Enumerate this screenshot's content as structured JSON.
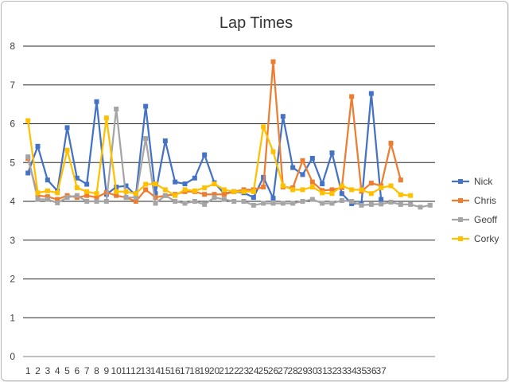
{
  "chart_data": {
    "type": "line",
    "title": "Lap Times",
    "xlabel": "",
    "ylabel": "",
    "ylim": [
      0,
      8
    ],
    "y_ticks": [
      0,
      1,
      2,
      3,
      4,
      5,
      6,
      7,
      8
    ],
    "grid": "horizontal",
    "legend_position": "right",
    "categories": [
      "1",
      "2",
      "3",
      "4",
      "5",
      "6",
      "7",
      "8",
      "9",
      "10",
      "11",
      "12",
      "13",
      "14",
      "15",
      "16",
      "17",
      "18",
      "19",
      "20",
      "21",
      "22",
      "23",
      "24",
      "25",
      "26",
      "27",
      "28",
      "29",
      "30",
      "31",
      "32",
      "33",
      "34",
      "35",
      "36",
      "37",
      "",
      "",
      "",
      "",
      ""
    ],
    "series": [
      {
        "name": "Nick",
        "color": "#4472c4",
        "values": [
          4.73,
          5.42,
          4.55,
          4.27,
          5.9,
          4.6,
          4.44,
          6.57,
          4.18,
          4.37,
          4.4,
          4.15,
          6.45,
          4.2,
          5.56,
          4.5,
          4.45,
          4.6,
          5.2,
          4.48,
          4.2,
          4.25,
          4.22,
          4.1,
          4.62,
          4.08,
          6.19,
          4.87,
          4.69,
          5.11,
          4.45,
          5.25,
          4.2,
          3.94,
          3.95,
          6.78,
          4.05,
          null,
          null,
          null,
          null,
          null
        ]
      },
      {
        "name": "Chris",
        "color": "#ed7d31",
        "values": [
          5.1,
          4.15,
          4.12,
          4.05,
          4.15,
          4.1,
          4.15,
          4.1,
          4.23,
          4.15,
          4.1,
          4.0,
          4.3,
          4.1,
          4.15,
          4.18,
          4.25,
          4.25,
          4.18,
          4.18,
          4.18,
          4.25,
          4.3,
          4.3,
          4.37,
          7.6,
          4.37,
          4.35,
          5.05,
          4.5,
          4.28,
          4.3,
          4.35,
          6.7,
          4.26,
          4.47,
          4.4,
          5.5,
          4.55,
          null,
          null,
          null
        ]
      },
      {
        "name": "Geoff",
        "color": "#a5a5a5",
        "values": [
          5.15,
          4.05,
          4.05,
          3.96,
          4.1,
          4.15,
          4.0,
          4.0,
          4.0,
          6.38,
          4.1,
          4.1,
          5.62,
          3.95,
          4.15,
          4.0,
          3.95,
          4.0,
          3.92,
          4.1,
          4.05,
          4.0,
          4.0,
          3.9,
          3.95,
          3.95,
          3.95,
          3.95,
          4.0,
          4.05,
          3.95,
          3.95,
          4.02,
          4.0,
          3.9,
          3.92,
          3.93,
          3.98,
          3.92,
          3.92,
          3.85,
          3.9
        ]
      },
      {
        "name": "Corky",
        "color": "#ffc000",
        "values": [
          6.08,
          4.22,
          4.27,
          4.22,
          5.32,
          4.35,
          4.25,
          4.2,
          6.15,
          4.25,
          4.25,
          4.2,
          4.44,
          4.45,
          4.3,
          4.15,
          4.3,
          4.27,
          4.35,
          4.45,
          4.3,
          4.25,
          4.25,
          4.25,
          5.92,
          5.28,
          4.4,
          4.3,
          4.3,
          4.37,
          4.22,
          4.2,
          4.4,
          4.3,
          4.3,
          4.2,
          4.35,
          4.4,
          4.17,
          4.15,
          null,
          null
        ]
      }
    ]
  }
}
